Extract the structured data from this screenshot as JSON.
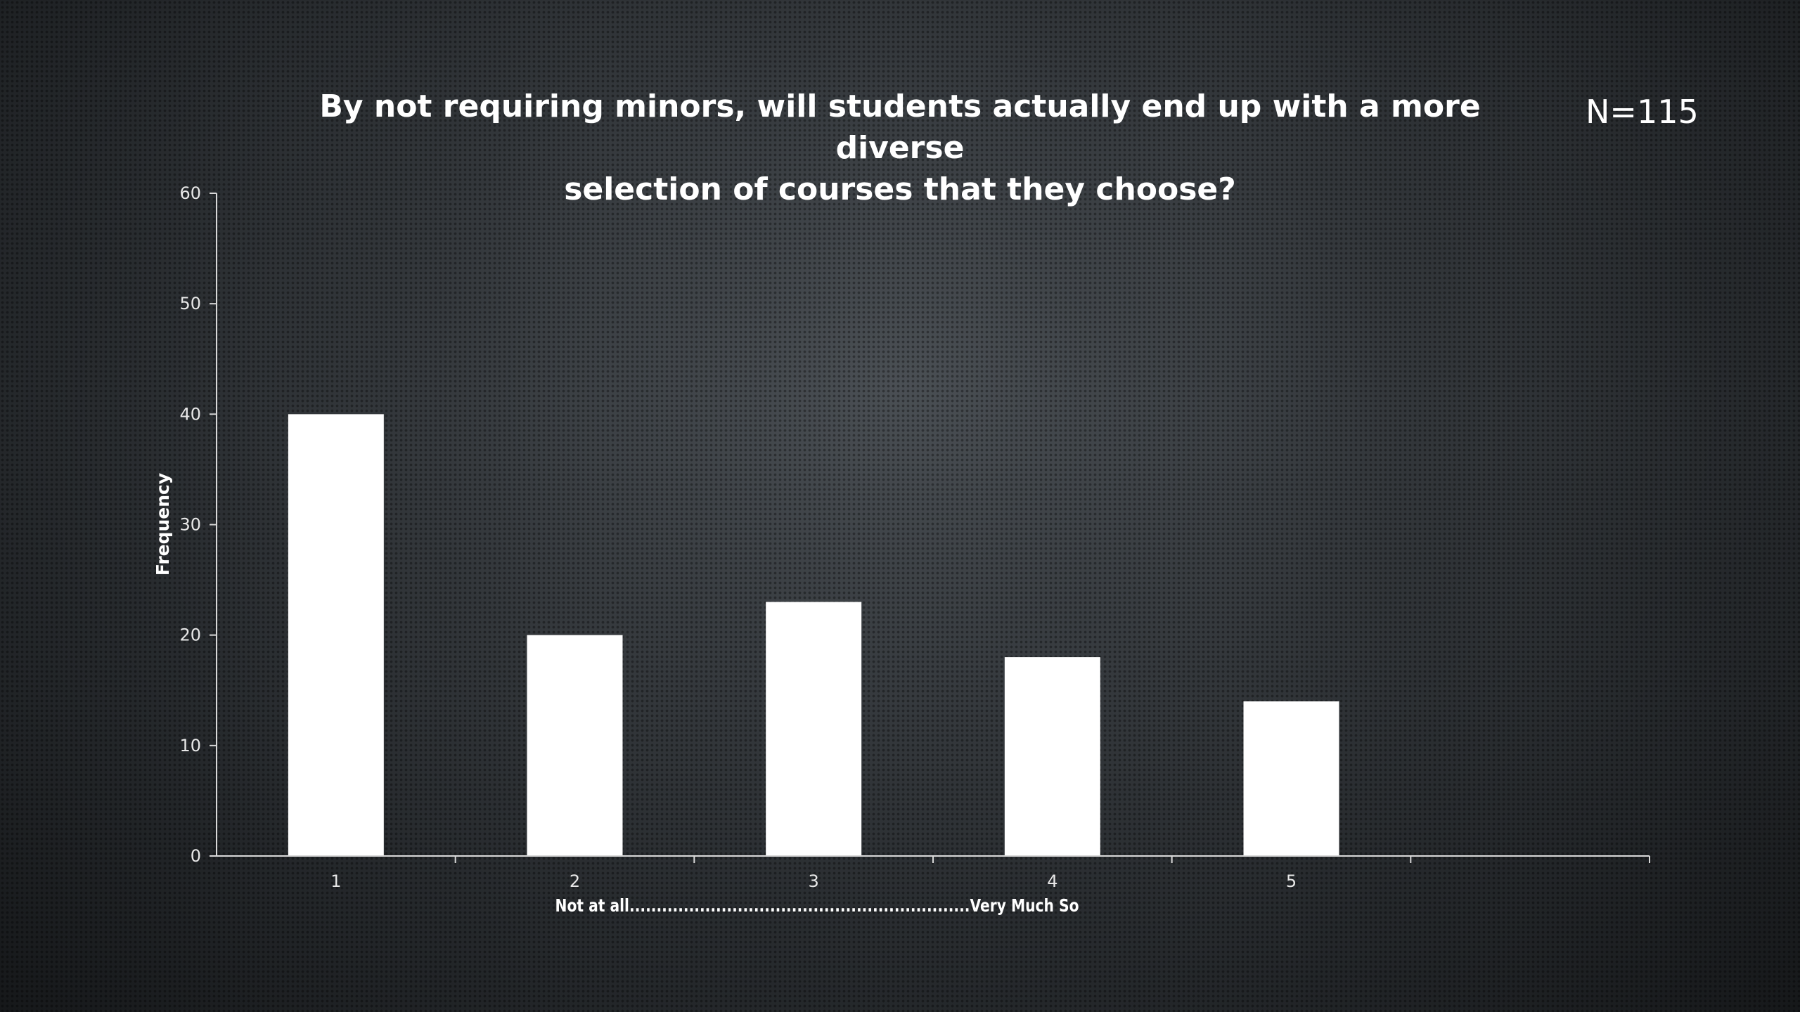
{
  "slide": {
    "title_line1": "By not requiring minors, will students actually end up with a more diverse",
    "title_line2": "selection of courses that they choose?",
    "n_label": "N=115"
  },
  "chart_data": {
    "type": "bar",
    "title": "By not requiring minors, will students actually end up with a more diverse selection of courses that they choose?",
    "categories": [
      "1",
      "2",
      "3",
      "4",
      "5"
    ],
    "values": [
      40,
      20,
      23,
      18,
      14
    ],
    "xlabel": "Not at all...............................................................Very Much So",
    "ylabel": "Frequency",
    "ylim": [
      0,
      60
    ],
    "yticks": [
      0,
      10,
      20,
      30,
      40,
      50,
      60
    ],
    "grid": false,
    "legend": "none",
    "colors": {
      "bar": "#ffffff",
      "axis": "#d8d8d8",
      "text": "#ffffff"
    }
  }
}
